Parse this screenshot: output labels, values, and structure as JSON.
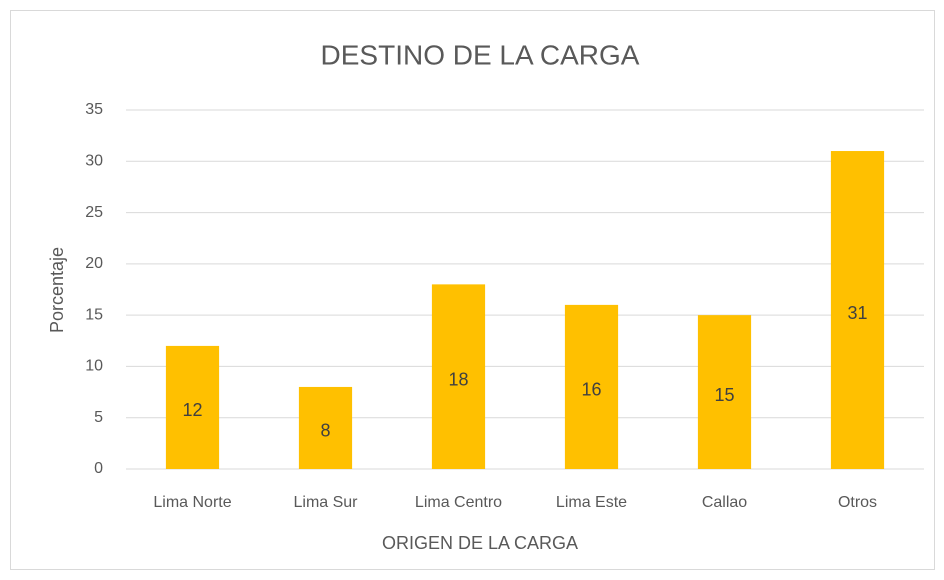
{
  "chart_data": {
    "type": "bar",
    "title": "DESTINO  DE LA CARGA",
    "x_label": "ORIGEN  DE LA CARGA",
    "y_label": "Porcentaje",
    "categories": [
      "Lima Norte",
      "Lima Sur",
      "Lima Centro",
      "Lima Este",
      "Callao",
      "Otros"
    ],
    "values": [
      12,
      8,
      18,
      16,
      15,
      31
    ],
    "color": "#ffc000",
    "ylim": [
      0,
      35
    ],
    "yticks": [
      0,
      5,
      10,
      15,
      20,
      25,
      30,
      35
    ],
    "grid": true
  }
}
